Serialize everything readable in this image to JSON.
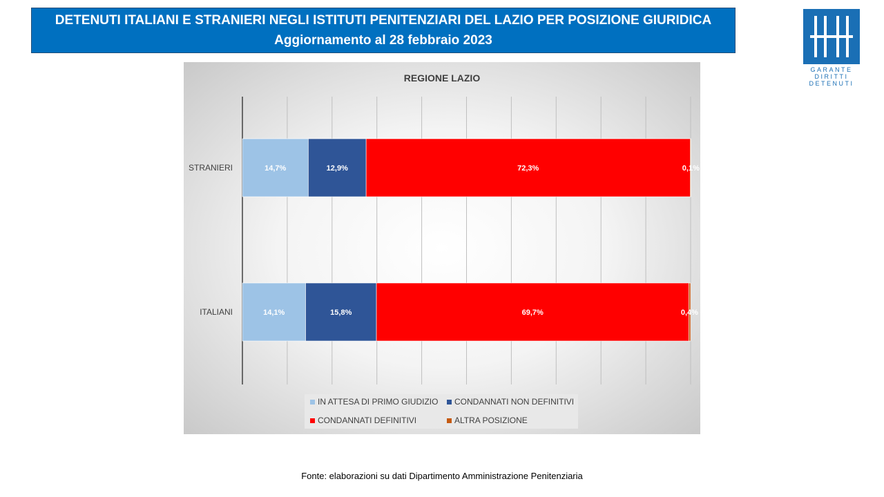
{
  "header": {
    "title_line1": "DETENUTI ITALIANI E STRANIERI NEGLI ISTITUTI PENITENZIARI DEL LAZIO PER POSIZIONE GIURIDICA",
    "title_line2": "Aggiornamento al 28 febbraio 2023"
  },
  "logo": {
    "line1": "GARANTE",
    "line2": "DIRITTI",
    "line3": "DETENUTI",
    "color": "#1a6fb5"
  },
  "chart_data": {
    "type": "bar",
    "orientation": "horizontal",
    "stacked": "100%",
    "title": "REGIONE LAZIO",
    "categories": [
      "STRANIERI",
      "ITALIANI"
    ],
    "series": [
      {
        "name": "IN ATTESA DI PRIMO GIUDIZIO",
        "color": "#9dc3e6",
        "values": [
          14.7,
          14.1
        ],
        "labels": [
          "14,7%",
          "14,1%"
        ]
      },
      {
        "name": "CONDANNATI NON DEFINITIVI",
        "color": "#2f5597",
        "values": [
          12.9,
          15.8
        ],
        "labels": [
          "12,9%",
          "15,8%"
        ]
      },
      {
        "name": "CONDANNATI DEFINITIVI",
        "color": "#ff0000",
        "values": [
          72.3,
          69.7
        ],
        "labels": [
          "72,3%",
          "69,7%"
        ]
      },
      {
        "name": "ALTRA POSIZIONE",
        "color": "#c55a11",
        "values": [
          0.1,
          0.4
        ],
        "labels": [
          "0,1%",
          "0,4%"
        ]
      }
    ],
    "xlim": [
      0,
      100
    ],
    "grid": true,
    "legend_position": "bottom"
  },
  "footer": {
    "source": "Fonte: elaborazioni su dati Dipartimento Amministrazione Penitenziaria"
  }
}
